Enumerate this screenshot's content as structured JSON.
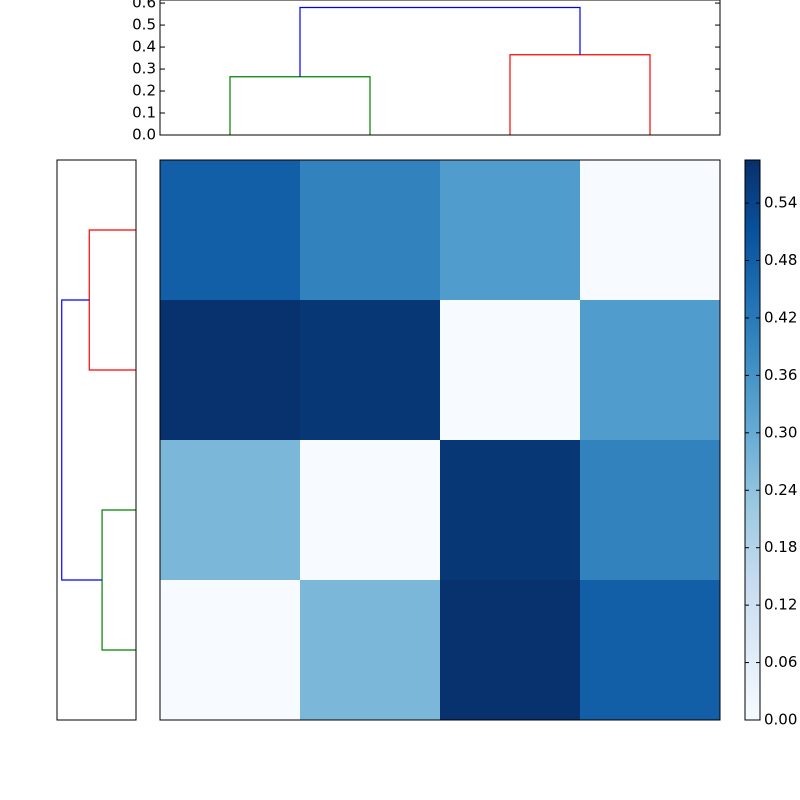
{
  "chart_data": [
    {
      "type": "dendrogram",
      "orientation": "top",
      "links": [
        {
          "color": "#008000",
          "icoord": [
            5,
            5,
            15,
            15
          ],
          "dcoord": [
            0,
            0.265,
            0.265,
            0
          ]
        },
        {
          "color": "#ff0000",
          "icoord": [
            25,
            25,
            35,
            35
          ],
          "dcoord": [
            0,
            0.365,
            0.365,
            0
          ]
        },
        {
          "color": "#0000ff",
          "icoord": [
            10,
            10,
            30,
            30
          ],
          "dcoord": [
            0.265,
            0.58,
            0.58,
            0.365
          ]
        }
      ],
      "xlim": [
        0,
        40
      ],
      "ylim": [
        0,
        0.614
      ],
      "yticks": [
        {
          "value": 0,
          "label": "0.0"
        },
        0.1,
        0.2,
        0.3,
        0.4,
        0.5,
        0.6
      ]
    },
    {
      "type": "dendrogram",
      "orientation": "left",
      "links": [
        {
          "color": "#008000",
          "icoord": [
            5,
            5,
            15,
            15
          ],
          "dcoord": [
            0,
            0.265,
            0.265,
            0
          ]
        },
        {
          "color": "#ff0000",
          "icoord": [
            25,
            25,
            35,
            35
          ],
          "dcoord": [
            0,
            0.365,
            0.365,
            0
          ]
        },
        {
          "color": "#0000ff",
          "icoord": [
            10,
            10,
            30,
            30
          ],
          "dcoord": [
            0.265,
            0.58,
            0.58,
            0.365
          ]
        }
      ],
      "ylim": [
        0,
        40
      ],
      "xlim": [
        0.617,
        0
      ]
    },
    {
      "type": "heatmap",
      "values": [
        [
          0.48,
          0.4,
          0.34,
          0.0
        ],
        [
          0.58,
          0.57,
          0.0,
          0.34
        ],
        [
          0.27,
          0.0,
          0.57,
          0.4
        ],
        [
          0.0,
          0.27,
          0.58,
          0.48
        ]
      ],
      "clim": [
        0,
        0.585
      ],
      "colormap": [
        "#f7fbff",
        "#deebf7",
        "#c6dbef",
        "#9ecae1",
        "#6baed6",
        "#4292c6",
        "#2171b5",
        "#08519c",
        "#08306b"
      ],
      "cticks": [
        {
          "value": 0,
          "label": "0.00"
        },
        {
          "value": 0.06,
          "label": "0.06"
        },
        {
          "value": 0.12,
          "label": "0.12"
        },
        {
          "value": 0.18,
          "label": "0.18"
        },
        {
          "value": 0.24,
          "label": "0.24"
        },
        {
          "value": 0.3,
          "label": "0.30"
        },
        {
          "value": 0.36,
          "label": "0.36"
        },
        {
          "value": 0.42,
          "label": "0.42"
        },
        {
          "value": 0.48,
          "label": "0.48"
        },
        {
          "value": 0.54,
          "label": "0.54"
        }
      ]
    }
  ]
}
